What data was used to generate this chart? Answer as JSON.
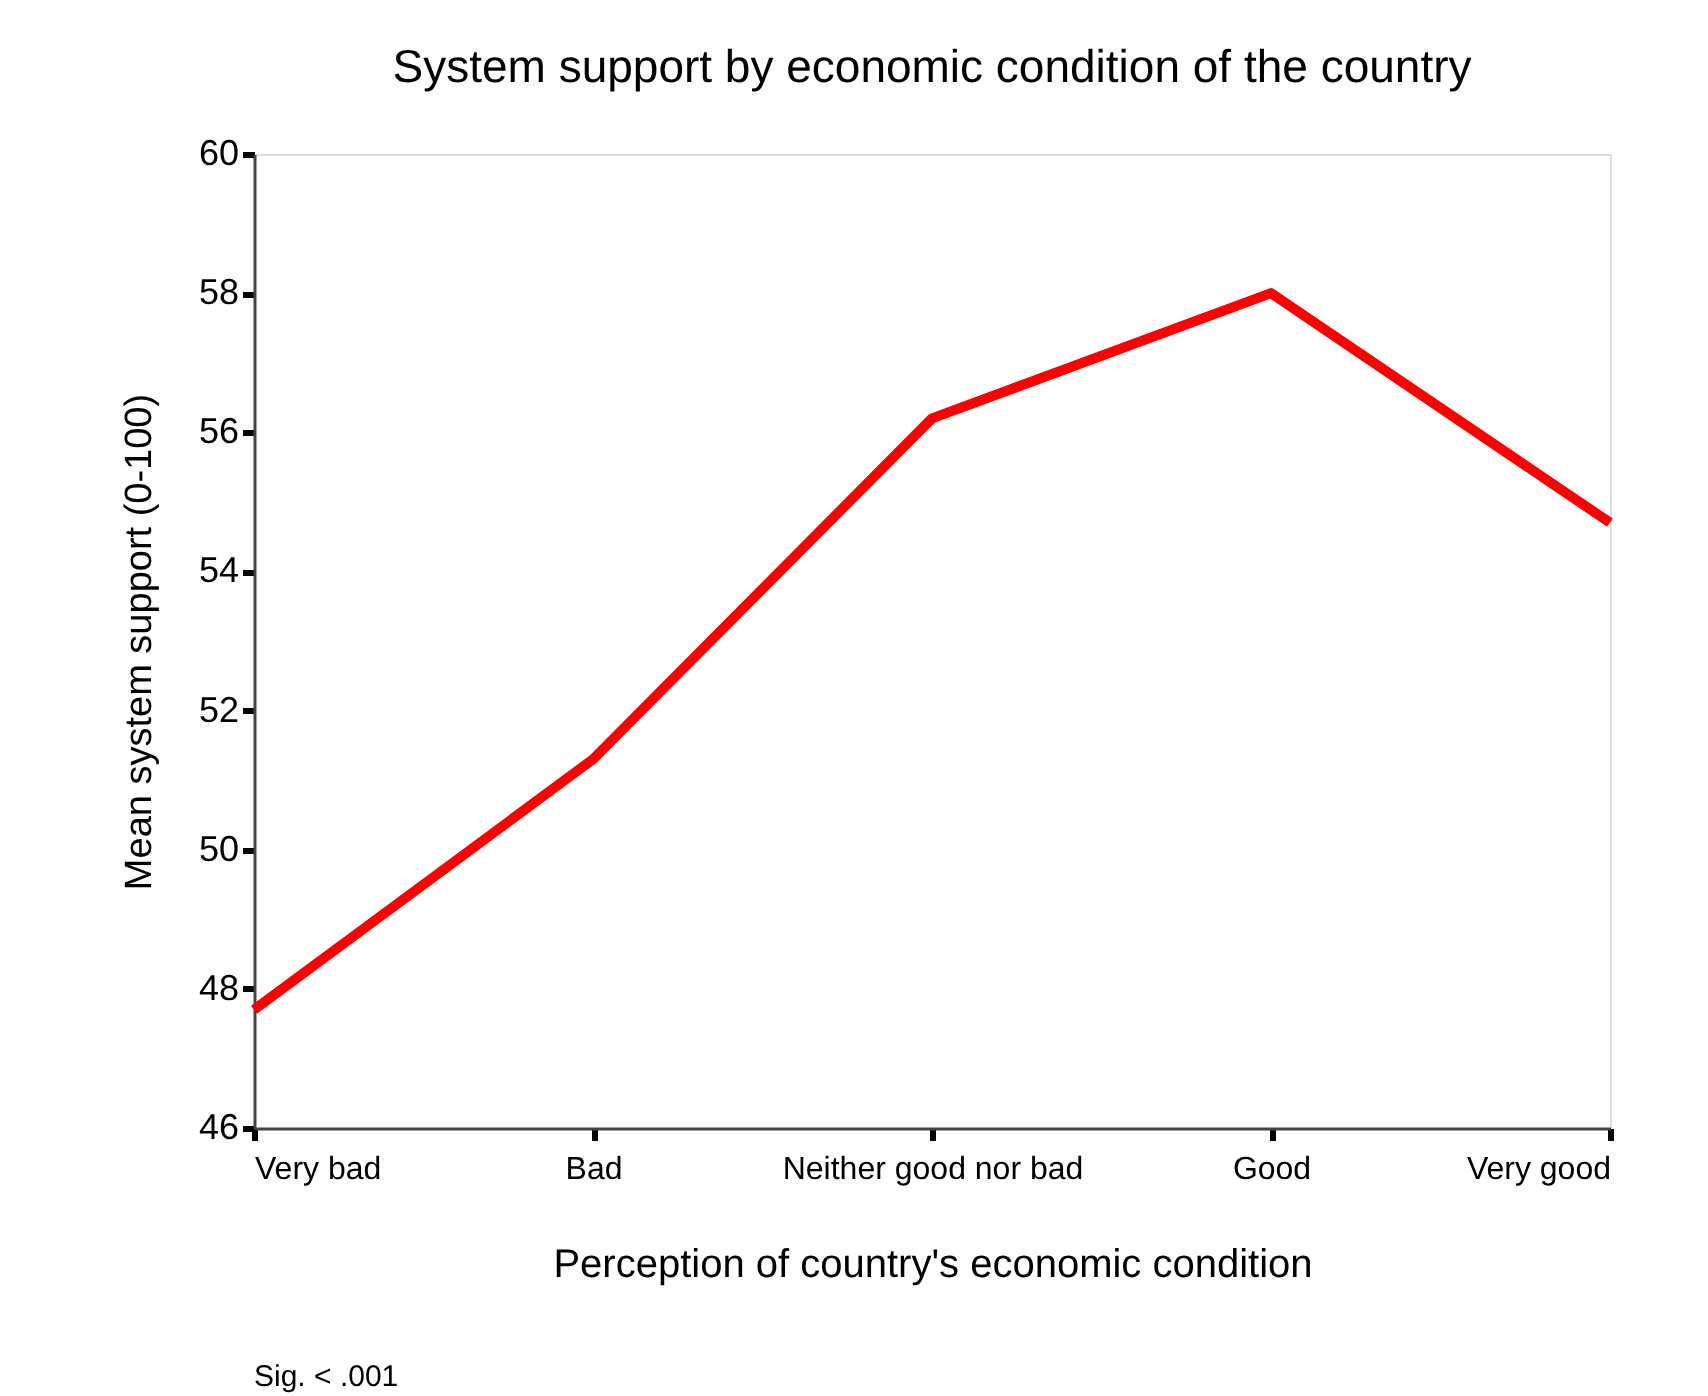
{
  "chart_data": {
    "type": "line",
    "title": "System support by economic condition of the country",
    "xlabel": "Perception of country's economic condition",
    "ylabel": "Mean system support (0-100)",
    "categories": [
      "Very bad",
      "Bad",
      "Neither good nor bad",
      "Good",
      "Very good"
    ],
    "series": [
      {
        "color": "#ff0000",
        "values": [
          47.7,
          51.3,
          56.2,
          58.0,
          54.7
        ]
      }
    ],
    "ylim": [
      46,
      60
    ],
    "yticks": [
      46,
      48,
      50,
      52,
      54,
      56,
      58,
      60
    ],
    "grid": false,
    "marker": "none",
    "line_style": "solid",
    "annotations": [
      "Sig. < .001"
    ]
  }
}
